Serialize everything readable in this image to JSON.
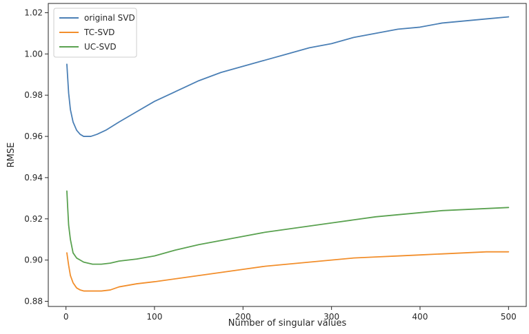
{
  "chart_data": {
    "type": "line",
    "title": "",
    "xlabel": "Number of singular values",
    "ylabel": "RMSE",
    "xlim": [
      -20,
      520
    ],
    "ylim": [
      0.8775,
      1.0245
    ],
    "x_ticks": [
      0,
      100,
      200,
      300,
      400,
      500
    ],
    "y_ticks": [
      0.88,
      0.9,
      0.92,
      0.94,
      0.96,
      0.98,
      1.0,
      1.02
    ],
    "x_tick_labels": [
      "0",
      "100",
      "200",
      "300",
      "400",
      "500"
    ],
    "y_tick_labels": [
      "0.88",
      "0.90",
      "0.92",
      "0.94",
      "0.96",
      "0.98",
      "1.00",
      "1.02"
    ],
    "grid": false,
    "legend_position": "top-left",
    "series": [
      {
        "name": "original SVD",
        "color": "#4a7fb5",
        "x": [
          1,
          2,
          3,
          5,
          8,
          12,
          16,
          20,
          24,
          28,
          35,
          45,
          60,
          80,
          100,
          125,
          150,
          175,
          200,
          225,
          250,
          275,
          300,
          325,
          350,
          375,
          400,
          425,
          450,
          475,
          500
        ],
        "y": [
          0.995,
          0.988,
          0.981,
          0.973,
          0.967,
          0.963,
          0.961,
          0.96,
          0.96,
          0.96,
          0.961,
          0.963,
          0.967,
          0.972,
          0.977,
          0.982,
          0.987,
          0.991,
          0.994,
          0.997,
          1.0,
          1.003,
          1.005,
          1.008,
          1.01,
          1.012,
          1.013,
          1.015,
          1.016,
          1.017,
          1.018
        ]
      },
      {
        "name": "TC-SVD",
        "color": "#f28e2b",
        "x": [
          1,
          2,
          3,
          5,
          8,
          12,
          16,
          20,
          25,
          30,
          40,
          50,
          60,
          80,
          100,
          125,
          150,
          175,
          200,
          225,
          250,
          275,
          300,
          325,
          350,
          375,
          400,
          425,
          450,
          475,
          500
        ],
        "y": [
          0.9035,
          0.9005,
          0.8975,
          0.8925,
          0.889,
          0.8865,
          0.8855,
          0.885,
          0.885,
          0.885,
          0.885,
          0.8855,
          0.887,
          0.8885,
          0.8895,
          0.891,
          0.8925,
          0.894,
          0.8955,
          0.897,
          0.898,
          0.899,
          0.9,
          0.901,
          0.9015,
          0.902,
          0.9025,
          0.903,
          0.9035,
          0.904,
          0.904
        ]
      },
      {
        "name": "UC-SVD",
        "color": "#59a14f",
        "x": [
          1,
          2,
          3,
          5,
          8,
          12,
          16,
          20,
          25,
          30,
          40,
          50,
          60,
          80,
          100,
          125,
          150,
          175,
          200,
          225,
          250,
          275,
          300,
          325,
          350,
          375,
          400,
          425,
          450,
          475,
          500
        ],
        "y": [
          0.9335,
          0.925,
          0.917,
          0.91,
          0.9035,
          0.901,
          0.9,
          0.899,
          0.8985,
          0.898,
          0.898,
          0.8985,
          0.8995,
          0.9005,
          0.902,
          0.905,
          0.9075,
          0.9095,
          0.9115,
          0.9135,
          0.915,
          0.9165,
          0.918,
          0.9195,
          0.921,
          0.922,
          0.923,
          0.924,
          0.9245,
          0.925,
          0.9255
        ]
      }
    ]
  }
}
